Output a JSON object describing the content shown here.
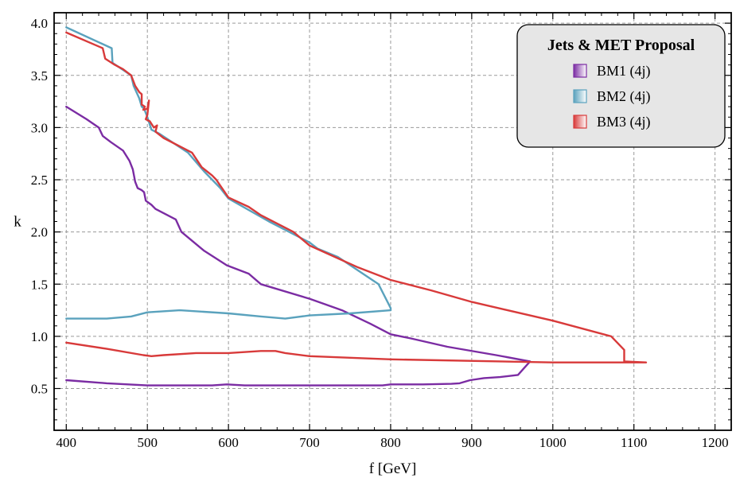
{
  "chart_data": {
    "type": "line",
    "xlabel": "f [GeV]",
    "ylabel": "k",
    "xlim": [
      385,
      1220
    ],
    "ylim": [
      0.1,
      4.1
    ],
    "xticks": [
      400,
      500,
      600,
      700,
      800,
      900,
      1000,
      1100,
      1200
    ],
    "yticks": [
      0.5,
      1.0,
      1.5,
      2.0,
      2.5,
      3.0,
      3.5,
      4.0
    ],
    "xtick_labels": [
      "400",
      "500",
      "600",
      "700",
      "800",
      "900",
      "1000",
      "1100",
      "1200"
    ],
    "ytick_labels": [
      "0.5",
      "1.0",
      "1.5",
      "2.0",
      "2.5",
      "3.0",
      "3.5",
      "4.0"
    ],
    "grid": true,
    "legend": {
      "title": "Jets & MET Proposal",
      "placement": "top-right",
      "entries": [
        "BM1 (4j)",
        "BM2 (4j)",
        "BM3 (4j)"
      ]
    },
    "series": [
      {
        "name": "BM1 (4j)",
        "color": "#7b2ca3",
        "points": [
          [
            400,
            3.2
          ],
          [
            425,
            3.08
          ],
          [
            440,
            3.0
          ],
          [
            445,
            2.92
          ],
          [
            455,
            2.86
          ],
          [
            470,
            2.78
          ],
          [
            478,
            2.68
          ],
          [
            482,
            2.6
          ],
          [
            485,
            2.48
          ],
          [
            488,
            2.42
          ],
          [
            493,
            2.4
          ],
          [
            496,
            2.38
          ],
          [
            498,
            2.3
          ],
          [
            505,
            2.26
          ],
          [
            510,
            2.22
          ],
          [
            535,
            2.12
          ],
          [
            542,
            2.0
          ],
          [
            570,
            1.82
          ],
          [
            598,
            1.68
          ],
          [
            625,
            1.6
          ],
          [
            640,
            1.5
          ],
          [
            700,
            1.36
          ],
          [
            740,
            1.25
          ],
          [
            775,
            1.12
          ],
          [
            800,
            1.02
          ],
          [
            825,
            0.98
          ],
          [
            870,
            0.9
          ],
          [
            930,
            0.82
          ],
          [
            972,
            0.76
          ],
          [
            965,
            0.7
          ],
          [
            957,
            0.63
          ],
          [
            935,
            0.61
          ],
          [
            915,
            0.6
          ],
          [
            898,
            0.58
          ],
          [
            885,
            0.55
          ],
          [
            875,
            0.545
          ],
          [
            840,
            0.54
          ],
          [
            800,
            0.54
          ],
          [
            790,
            0.53
          ],
          [
            700,
            0.53
          ],
          [
            620,
            0.53
          ],
          [
            598,
            0.54
          ],
          [
            580,
            0.53
          ],
          [
            500,
            0.53
          ],
          [
            450,
            0.55
          ],
          [
            400,
            0.58
          ]
        ]
      },
      {
        "name": "BM2 (4j)",
        "color": "#5aa2bd",
        "points": [
          [
            400,
            3.96
          ],
          [
            456,
            3.76
          ],
          [
            457,
            3.62
          ],
          [
            480,
            3.5
          ],
          [
            483,
            3.4
          ],
          [
            490,
            3.28
          ],
          [
            493,
            3.2
          ],
          [
            496,
            3.18
          ],
          [
            500,
            3.1
          ],
          [
            505,
            2.98
          ],
          [
            515,
            2.94
          ],
          [
            550,
            2.76
          ],
          [
            570,
            2.58
          ],
          [
            590,
            2.42
          ],
          [
            600,
            2.32
          ],
          [
            650,
            2.1
          ],
          [
            700,
            1.9
          ],
          [
            710,
            1.84
          ],
          [
            735,
            1.76
          ],
          [
            785,
            1.5
          ],
          [
            800,
            1.27
          ],
          [
            800,
            1.25
          ],
          [
            750,
            1.22
          ],
          [
            700,
            1.2
          ],
          [
            670,
            1.17
          ],
          [
            640,
            1.19
          ],
          [
            600,
            1.22
          ],
          [
            540,
            1.25
          ],
          [
            500,
            1.23
          ],
          [
            480,
            1.19
          ],
          [
            450,
            1.17
          ],
          [
            400,
            1.17
          ]
        ]
      },
      {
        "name": "BM3 (4j)",
        "color": "#d83a3a",
        "points": [
          [
            400,
            3.91
          ],
          [
            445,
            3.76
          ],
          [
            448,
            3.66
          ],
          [
            460,
            3.6
          ],
          [
            470,
            3.56
          ],
          [
            480,
            3.5
          ],
          [
            485,
            3.4
          ],
          [
            490,
            3.34
          ],
          [
            493,
            3.32
          ],
          [
            493,
            3.22
          ],
          [
            497,
            3.2
          ],
          [
            495,
            3.17
          ],
          [
            500,
            3.18
          ],
          [
            502,
            3.26
          ],
          [
            500,
            3.12
          ],
          [
            498,
            3.08
          ],
          [
            503,
            3.06
          ],
          [
            508,
            3.0
          ],
          [
            512,
            3.02
          ],
          [
            510,
            2.96
          ],
          [
            520,
            2.9
          ],
          [
            555,
            2.76
          ],
          [
            567,
            2.62
          ],
          [
            580,
            2.54
          ],
          [
            585,
            2.5
          ],
          [
            600,
            2.33
          ],
          [
            625,
            2.24
          ],
          [
            640,
            2.16
          ],
          [
            660,
            2.08
          ],
          [
            680,
            2.0
          ],
          [
            700,
            1.87
          ],
          [
            720,
            1.8
          ],
          [
            760,
            1.66
          ],
          [
            780,
            1.6
          ],
          [
            800,
            1.54
          ],
          [
            850,
            1.44
          ],
          [
            900,
            1.33
          ],
          [
            1000,
            1.15
          ],
          [
            1072,
            1.0
          ],
          [
            1088,
            0.87
          ],
          [
            1088,
            0.76
          ],
          [
            1115,
            0.75
          ],
          [
            1000,
            0.75
          ],
          [
            800,
            0.78
          ],
          [
            700,
            0.81
          ],
          [
            670,
            0.84
          ],
          [
            658,
            0.86
          ],
          [
            640,
            0.86
          ],
          [
            600,
            0.84
          ],
          [
            560,
            0.84
          ],
          [
            520,
            0.82
          ],
          [
            505,
            0.81
          ],
          [
            495,
            0.82
          ],
          [
            450,
            0.88
          ],
          [
            400,
            0.94
          ]
        ]
      }
    ]
  }
}
